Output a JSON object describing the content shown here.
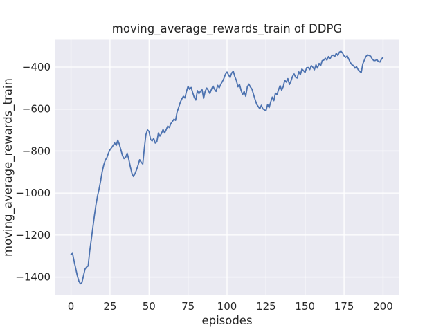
{
  "figure": {
    "background": "#ffffff"
  },
  "chart_data": {
    "type": "line",
    "title": "moving_average_rewards_train of DDPG",
    "xlabel": "episodes",
    "ylabel": "moving_average_rewards_train",
    "legend_position": "none",
    "grid": true,
    "axes_background": "#eaeaf2",
    "grid_color": "#ffffff",
    "text_color": "#262626",
    "xlim": [
      -10,
      210
    ],
    "ylim": [
      -1487,
      -270
    ],
    "xticks": [
      0,
      25,
      50,
      75,
      100,
      125,
      150,
      175,
      200
    ],
    "yticks": [
      -400,
      -600,
      -800,
      -1000,
      -1200,
      -1400
    ],
    "x_start": 0,
    "x_step": 1,
    "series": [
      {
        "name": "moving_average_rewards_train",
        "color": "#4c72b0",
        "values": [
          -1292,
          -1287,
          -1325,
          -1358,
          -1392,
          -1418,
          -1432,
          -1426,
          -1394,
          -1362,
          -1352,
          -1347,
          -1276,
          -1222,
          -1164,
          -1108,
          -1056,
          -1014,
          -980,
          -942,
          -898,
          -866,
          -843,
          -831,
          -810,
          -793,
          -784,
          -773,
          -762,
          -773,
          -748,
          -768,
          -795,
          -822,
          -836,
          -830,
          -810,
          -838,
          -874,
          -905,
          -921,
          -908,
          -889,
          -867,
          -841,
          -853,
          -862,
          -786,
          -722,
          -699,
          -706,
          -745,
          -752,
          -740,
          -762,
          -756,
          -714,
          -729,
          -716,
          -697,
          -714,
          -698,
          -681,
          -688,
          -669,
          -659,
          -648,
          -654,
          -614,
          -592,
          -569,
          -552,
          -539,
          -547,
          -516,
          -491,
          -506,
          -497,
          -522,
          -545,
          -557,
          -512,
          -527,
          -515,
          -508,
          -549,
          -515,
          -500,
          -511,
          -526,
          -506,
          -490,
          -506,
          -516,
          -487,
          -499,
          -482,
          -469,
          -454,
          -434,
          -424,
          -438,
          -450,
          -428,
          -420,
          -446,
          -464,
          -494,
          -482,
          -511,
          -531,
          -516,
          -539,
          -494,
          -481,
          -495,
          -505,
          -531,
          -555,
          -577,
          -588,
          -599,
          -582,
          -599,
          -604,
          -607,
          -578,
          -593,
          -566,
          -543,
          -560,
          -524,
          -532,
          -508,
          -488,
          -510,
          -494,
          -463,
          -472,
          -455,
          -483,
          -466,
          -444,
          -433,
          -449,
          -452,
          -423,
          -437,
          -409,
          -417,
          -426,
          -403,
          -402,
          -412,
          -393,
          -401,
          -413,
          -389,
          -405,
          -383,
          -394,
          -369,
          -367,
          -358,
          -367,
          -350,
          -361,
          -347,
          -343,
          -351,
          -334,
          -345,
          -329,
          -325,
          -333,
          -347,
          -354,
          -347,
          -362,
          -378,
          -389,
          -393,
          -405,
          -398,
          -412,
          -420,
          -427,
          -385,
          -367,
          -350,
          -342,
          -345,
          -348,
          -361,
          -369,
          -369,
          -364,
          -374,
          -376,
          -362,
          -353
        ]
      }
    ]
  }
}
